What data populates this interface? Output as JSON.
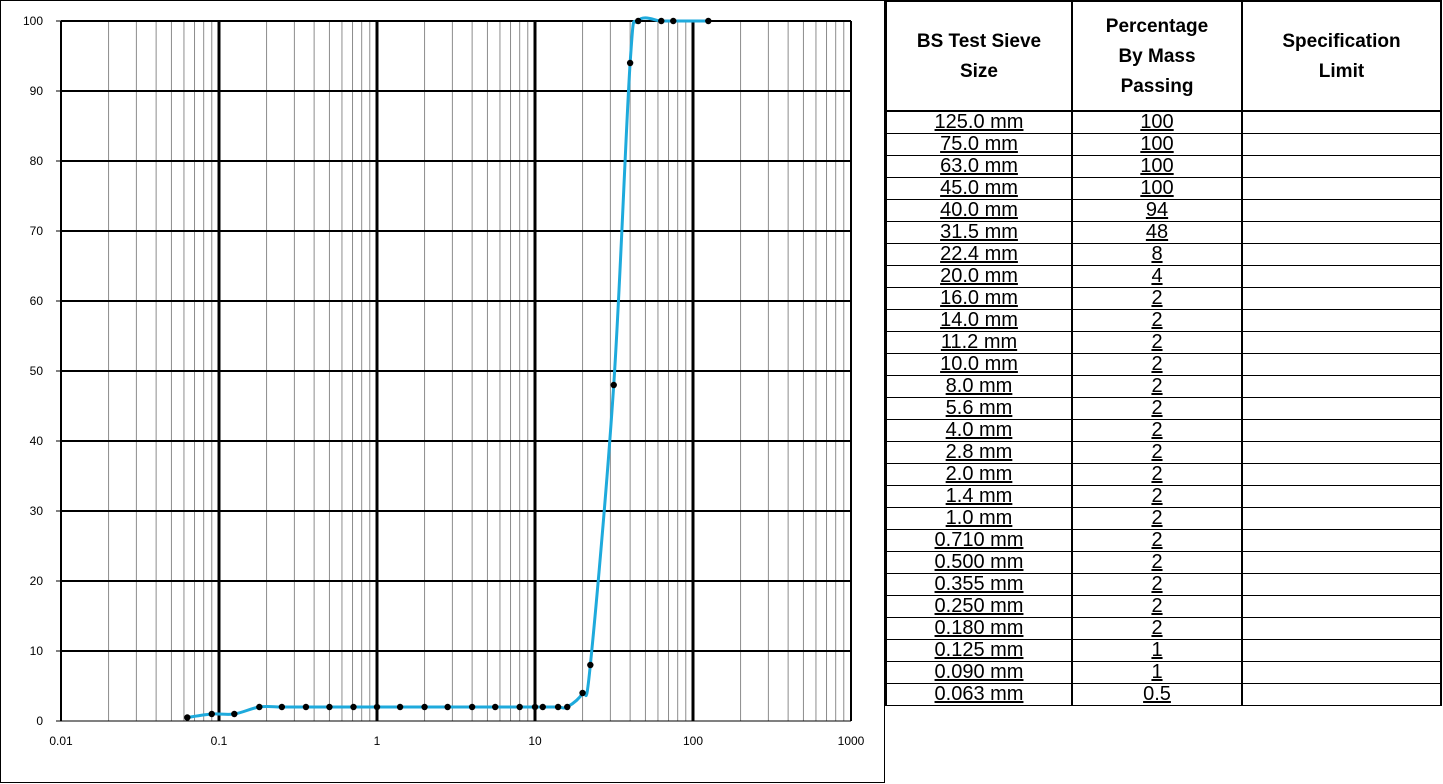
{
  "chart_data": {
    "type": "line",
    "title": "",
    "xlabel": "",
    "ylabel": "",
    "xscale": "log",
    "xlim": [
      0.01,
      1000
    ],
    "ylim": [
      0,
      100
    ],
    "x_ticks": [
      "0.01",
      "0.1",
      "1",
      "10",
      "100",
      "1000"
    ],
    "y_ticks": [
      "0",
      "10",
      "20",
      "30",
      "40",
      "50",
      "60",
      "70",
      "80",
      "90",
      "100"
    ],
    "grid": true,
    "line_color": "#1eaadc",
    "marker_color": "#000000",
    "x": [
      0.063,
      0.09,
      0.125,
      0.18,
      0.25,
      0.355,
      0.5,
      0.71,
      1.0,
      1.4,
      2.0,
      2.8,
      4.0,
      5.6,
      8.0,
      10.0,
      11.2,
      14.0,
      16.0,
      20.0,
      22.4,
      31.5,
      40.0,
      45.0,
      63.0,
      75.0,
      125.0
    ],
    "y": [
      0.5,
      1,
      1,
      2,
      2,
      2,
      2,
      2,
      2,
      2,
      2,
      2,
      2,
      2,
      2,
      2,
      2,
      2,
      2,
      4,
      8,
      48,
      94,
      100,
      100,
      100,
      100
    ]
  },
  "table": {
    "headers": {
      "sieve": [
        "BS Test Sieve",
        "Size"
      ],
      "passing": [
        "Percentage",
        "By Mass",
        "Passing"
      ],
      "limit": [
        "Specification",
        "Limit"
      ]
    },
    "rows": [
      {
        "sieve": "125.0 mm",
        "passing": "100",
        "limit": ""
      },
      {
        "sieve": "75.0 mm",
        "passing": "100",
        "limit": ""
      },
      {
        "sieve": "63.0 mm",
        "passing": "100",
        "limit": ""
      },
      {
        "sieve": "45.0 mm",
        "passing": "100",
        "limit": ""
      },
      {
        "sieve": "40.0 mm",
        "passing": "94",
        "limit": ""
      },
      {
        "sieve": "31.5 mm",
        "passing": "48",
        "limit": ""
      },
      {
        "sieve": "22.4 mm",
        "passing": "8",
        "limit": ""
      },
      {
        "sieve": "20.0 mm",
        "passing": "4",
        "limit": ""
      },
      {
        "sieve": "16.0 mm",
        "passing": "2",
        "limit": ""
      },
      {
        "sieve": "14.0 mm",
        "passing": "2",
        "limit": ""
      },
      {
        "sieve": "11.2 mm",
        "passing": "2",
        "limit": ""
      },
      {
        "sieve": "10.0 mm",
        "passing": "2",
        "limit": ""
      },
      {
        "sieve": "8.0 mm",
        "passing": "2",
        "limit": ""
      },
      {
        "sieve": "5.6 mm",
        "passing": "2",
        "limit": ""
      },
      {
        "sieve": "4.0 mm",
        "passing": "2",
        "limit": ""
      },
      {
        "sieve": "2.8 mm",
        "passing": "2",
        "limit": ""
      },
      {
        "sieve": "2.0 mm",
        "passing": "2",
        "limit": ""
      },
      {
        "sieve": "1.4 mm",
        "passing": "2",
        "limit": ""
      },
      {
        "sieve": "1.0 mm",
        "passing": "2",
        "limit": ""
      },
      {
        "sieve": "0.710 mm",
        "passing": "2",
        "limit": ""
      },
      {
        "sieve": "0.500 mm",
        "passing": "2",
        "limit": ""
      },
      {
        "sieve": "0.355 mm",
        "passing": "2",
        "limit": ""
      },
      {
        "sieve": "0.250 mm",
        "passing": "2",
        "limit": ""
      },
      {
        "sieve": "0.180 mm",
        "passing": "2",
        "limit": ""
      },
      {
        "sieve": "0.125 mm",
        "passing": "1",
        "limit": ""
      },
      {
        "sieve": "0.090 mm",
        "passing": "1",
        "limit": ""
      },
      {
        "sieve": "0.063 mm",
        "passing": "0.5",
        "limit": ""
      }
    ]
  }
}
